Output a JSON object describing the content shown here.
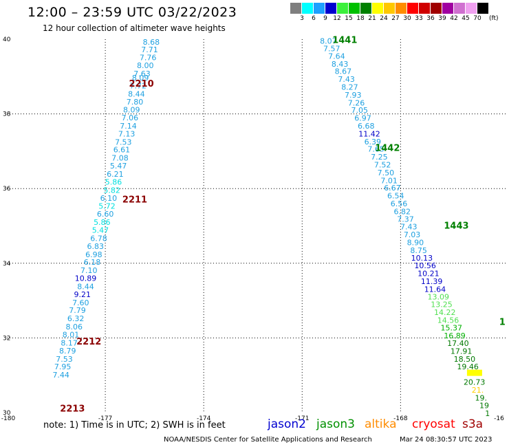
{
  "title": "12:00 – 23:59 UTC 03/22/2023",
  "subtitle": "12 hour collection of altimeter wave heights",
  "legend": {
    "colors": [
      "#7f7f7f",
      "#00ffff",
      "#1ea0ff",
      "#0000d0",
      "#3cf03c",
      "#00c000",
      "#008000",
      "#ffff00",
      "#ffc800",
      "#ff8c00",
      "#ff0000",
      "#d00000",
      "#a00000",
      "#a000a0",
      "#d070d0",
      "#f0a0f0",
      "#000000"
    ],
    "labels": [
      "3",
      "6",
      "9",
      "12",
      "15",
      "18",
      "21",
      "24",
      "27",
      "30",
      "33",
      "36",
      "39",
      "42",
      "45",
      "70"
    ],
    "unit": "(ft)"
  },
  "axes": {
    "x_ticks": [
      "-180",
      "-177",
      "-174",
      "-171",
      "-168",
      "-16"
    ],
    "y_ticks": [
      "40",
      "38",
      "36",
      "34",
      "32",
      "30"
    ],
    "lon_range": [
      -180,
      -164.8
    ],
    "lat_range": [
      30,
      40
    ],
    "grid": true
  },
  "tracks": [
    {
      "time_labels": [
        {
          "text": "2210",
          "lon": -175.9,
          "lat": 38.8,
          "color": "#8b0000"
        },
        {
          "text": "2211",
          "lon": -176.1,
          "lat": 35.7,
          "color": "#8b0000"
        },
        {
          "text": "2212",
          "lon": -177.5,
          "lat": 31.9,
          "color": "#8b0000"
        },
        {
          "text": "2213",
          "lon": -178.0,
          "lat": 30.1,
          "color": "#8b0000"
        }
      ],
      "points": [
        {
          "v": "8.68",
          "lon": -175.6,
          "lat": 39.93,
          "color": "#1ea0e0"
        },
        {
          "v": "7.71",
          "lon": -175.65,
          "lat": 39.72,
          "color": "#1ea0e0"
        },
        {
          "v": "7.76",
          "lon": -175.7,
          "lat": 39.51,
          "color": "#1ea0e0"
        },
        {
          "v": "8.00",
          "lon": -175.78,
          "lat": 39.3,
          "color": "#1ea0e0"
        },
        {
          "v": "7.63",
          "lon": -175.88,
          "lat": 39.08,
          "color": "#1ea0e0"
        },
        {
          "v": "8.09",
          "lon": -175.93,
          "lat": 38.97,
          "color": "#1ea0e0"
        },
        {
          "v": "7.72",
          "lon": -176.0,
          "lat": 38.76,
          "color": "#1ea0e0"
        },
        {
          "v": "8.44",
          "lon": -176.05,
          "lat": 38.54,
          "color": "#1ea0e0"
        },
        {
          "v": "7.80",
          "lon": -176.1,
          "lat": 38.32,
          "color": "#1ea0e0"
        },
        {
          "v": "8.09",
          "lon": -176.2,
          "lat": 38.11,
          "color": "#1ea0e0"
        },
        {
          "v": "7.06",
          "lon": -176.25,
          "lat": 37.9,
          "color": "#1ea0e0"
        },
        {
          "v": "7.14",
          "lon": -176.3,
          "lat": 37.68,
          "color": "#1ea0e0"
        },
        {
          "v": "7.13",
          "lon": -176.35,
          "lat": 37.47,
          "color": "#1ea0e0"
        },
        {
          "v": "7.53",
          "lon": -176.45,
          "lat": 37.25,
          "color": "#1ea0e0"
        },
        {
          "v": "6.61",
          "lon": -176.5,
          "lat": 37.04,
          "color": "#1ea0e0"
        },
        {
          "v": "7.08",
          "lon": -176.55,
          "lat": 36.82,
          "color": "#1ea0e0"
        },
        {
          "v": "5.47",
          "lon": -176.6,
          "lat": 36.61,
          "color": "#1ea0e0"
        },
        {
          "v": "6.21",
          "lon": -176.7,
          "lat": 36.39,
          "color": "#1ea0e0"
        },
        {
          "v": "5.86",
          "lon": -176.75,
          "lat": 36.18,
          "color": "#00e0e0"
        },
        {
          "v": "5.82",
          "lon": -176.8,
          "lat": 35.96,
          "color": "#00e0e0"
        },
        {
          "v": "6.10",
          "lon": -176.9,
          "lat": 35.75,
          "color": "#1ea0e0"
        },
        {
          "v": "5.72",
          "lon": -176.95,
          "lat": 35.53,
          "color": "#00e0e0"
        },
        {
          "v": "6.60",
          "lon": -177.0,
          "lat": 35.32,
          "color": "#1ea0e0"
        },
        {
          "v": "5.86",
          "lon": -177.1,
          "lat": 35.1,
          "color": "#00e0e0"
        },
        {
          "v": "5.47",
          "lon": -177.15,
          "lat": 34.89,
          "color": "#00e0e0"
        },
        {
          "v": "6.78",
          "lon": -177.2,
          "lat": 34.67,
          "color": "#1ea0e0"
        },
        {
          "v": "6.83",
          "lon": -177.3,
          "lat": 34.46,
          "color": "#1ea0e0"
        },
        {
          "v": "6.98",
          "lon": -177.35,
          "lat": 34.24,
          "color": "#1ea0e0"
        },
        {
          "v": "6.18",
          "lon": -177.4,
          "lat": 34.03,
          "color": "#1ea0e0"
        },
        {
          "v": "7.10",
          "lon": -177.5,
          "lat": 33.81,
          "color": "#1ea0e0"
        },
        {
          "v": "10.89",
          "lon": -177.6,
          "lat": 33.6,
          "color": "#0000c8"
        },
        {
          "v": "8.44",
          "lon": -177.6,
          "lat": 33.38,
          "color": "#1ea0e0"
        },
        {
          "v": "9.21",
          "lon": -177.7,
          "lat": 33.17,
          "color": "#0000c8"
        },
        {
          "v": "7.60",
          "lon": -177.75,
          "lat": 32.95,
          "color": "#1ea0e0"
        },
        {
          "v": "7.79",
          "lon": -177.85,
          "lat": 32.74,
          "color": "#1ea0e0"
        },
        {
          "v": "6.32",
          "lon": -177.9,
          "lat": 32.52,
          "color": "#1ea0e0"
        },
        {
          "v": "8.06",
          "lon": -177.95,
          "lat": 32.3,
          "color": "#1ea0e0"
        },
        {
          "v": "8.01",
          "lon": -178.05,
          "lat": 32.09,
          "color": "#1ea0e0"
        },
        {
          "v": "8.17",
          "lon": -178.1,
          "lat": 31.87,
          "color": "#1ea0e0"
        },
        {
          "v": "8.79",
          "lon": -178.15,
          "lat": 31.66,
          "color": "#1ea0e0"
        },
        {
          "v": "7.53",
          "lon": -178.25,
          "lat": 31.44,
          "color": "#1ea0e0"
        },
        {
          "v": "7.95",
          "lon": -178.3,
          "lat": 31.23,
          "color": "#1ea0e0"
        },
        {
          "v": "7.44",
          "lon": -178.35,
          "lat": 31.01,
          "color": "#1ea0e0"
        }
      ]
    },
    {
      "time_labels": [
        {
          "text": "1441",
          "lon": -169.7,
          "lat": 39.97,
          "color": "#008000"
        },
        {
          "text": "1442",
          "lon": -168.4,
          "lat": 37.08,
          "color": "#008000"
        },
        {
          "text": "1443",
          "lon": -166.3,
          "lat": 35.0,
          "color": "#008000"
        },
        {
          "text": "1",
          "lon": -164.9,
          "lat": 32.42,
          "color": "#008000"
        }
      ],
      "points": [
        {
          "v": "8.07",
          "lon": -170.2,
          "lat": 39.95,
          "color": "#1ea0e0"
        },
        {
          "v": "7.57",
          "lon": -170.1,
          "lat": 39.75,
          "color": "#1ea0e0"
        },
        {
          "v": "7.64",
          "lon": -169.95,
          "lat": 39.55,
          "color": "#1ea0e0"
        },
        {
          "v": "8.43",
          "lon": -169.85,
          "lat": 39.34,
          "color": "#1ea0e0"
        },
        {
          "v": "8.67",
          "lon": -169.75,
          "lat": 39.14,
          "color": "#1ea0e0"
        },
        {
          "v": "7.43",
          "lon": -169.65,
          "lat": 38.93,
          "color": "#1ea0e0"
        },
        {
          "v": "8.27",
          "lon": -169.55,
          "lat": 38.72,
          "color": "#1ea0e0"
        },
        {
          "v": "7.93",
          "lon": -169.45,
          "lat": 38.51,
          "color": "#1ea0e0"
        },
        {
          "v": "7.26",
          "lon": -169.35,
          "lat": 38.3,
          "color": "#1ea0e0"
        },
        {
          "v": "7.05",
          "lon": -169.25,
          "lat": 38.1,
          "color": "#1ea0e0"
        },
        {
          "v": "6.97",
          "lon": -169.15,
          "lat": 37.89,
          "color": "#1ea0e0"
        },
        {
          "v": "6.68",
          "lon": -169.05,
          "lat": 37.68,
          "color": "#1ea0e0"
        },
        {
          "v": "11.42",
          "lon": -168.95,
          "lat": 37.47,
          "color": "#0000c8"
        },
        {
          "v": "6.39",
          "lon": -168.85,
          "lat": 37.26,
          "color": "#1ea0e0"
        },
        {
          "v": "7.65",
          "lon": -168.75,
          "lat": 37.06,
          "color": "#1ea0e0"
        },
        {
          "v": "7.25",
          "lon": -168.65,
          "lat": 36.85,
          "color": "#1ea0e0"
        },
        {
          "v": "7.52",
          "lon": -168.55,
          "lat": 36.64,
          "color": "#1ea0e0"
        },
        {
          "v": "7.50",
          "lon": -168.45,
          "lat": 36.43,
          "color": "#1ea0e0"
        },
        {
          "v": "7.01",
          "lon": -168.35,
          "lat": 36.22,
          "color": "#1ea0e0"
        },
        {
          "v": "6.67",
          "lon": -168.25,
          "lat": 36.02,
          "color": "#1ea0e0"
        },
        {
          "v": "6.54",
          "lon": -168.15,
          "lat": 35.81,
          "color": "#1ea0e0"
        },
        {
          "v": "6.56",
          "lon": -168.05,
          "lat": 35.6,
          "color": "#1ea0e0"
        },
        {
          "v": "6.82",
          "lon": -167.95,
          "lat": 35.39,
          "color": "#1ea0e0"
        },
        {
          "v": "7.37",
          "lon": -167.85,
          "lat": 35.18,
          "color": "#1ea0e0"
        },
        {
          "v": "7.43",
          "lon": -167.75,
          "lat": 34.98,
          "color": "#1ea0e0"
        },
        {
          "v": "7.03",
          "lon": -167.65,
          "lat": 34.77,
          "color": "#1ea0e0"
        },
        {
          "v": "8.90",
          "lon": -167.55,
          "lat": 34.56,
          "color": "#1ea0e0"
        },
        {
          "v": "8.75",
          "lon": -167.45,
          "lat": 34.35,
          "color": "#1ea0e0"
        },
        {
          "v": "10.13",
          "lon": -167.35,
          "lat": 34.14,
          "color": "#0000c8"
        },
        {
          "v": "10.56",
          "lon": -167.25,
          "lat": 33.94,
          "color": "#0000c8"
        },
        {
          "v": "10.21",
          "lon": -167.15,
          "lat": 33.73,
          "color": "#0000c8"
        },
        {
          "v": "11.39",
          "lon": -167.05,
          "lat": 33.52,
          "color": "#0000c8"
        },
        {
          "v": "11.64",
          "lon": -166.95,
          "lat": 33.31,
          "color": "#0000c8"
        },
        {
          "v": "13.09",
          "lon": -166.85,
          "lat": 33.1,
          "color": "#50e050"
        },
        {
          "v": "13.25",
          "lon": -166.75,
          "lat": 32.9,
          "color": "#50e050"
        },
        {
          "v": "14.22",
          "lon": -166.65,
          "lat": 32.69,
          "color": "#50e050"
        },
        {
          "v": "14.56",
          "lon": -166.55,
          "lat": 32.48,
          "color": "#50e050"
        },
        {
          "v": "15.37",
          "lon": -166.45,
          "lat": 32.27,
          "color": "#00b000"
        },
        {
          "v": "16.89",
          "lon": -166.35,
          "lat": 32.06,
          "color": "#00b000"
        },
        {
          "v": "17.40",
          "lon": -166.25,
          "lat": 31.86,
          "color": "#007800"
        },
        {
          "v": "17.91",
          "lon": -166.15,
          "lat": 31.65,
          "color": "#007800"
        },
        {
          "v": "18.50",
          "lon": -166.05,
          "lat": 31.44,
          "color": "#007800"
        },
        {
          "v": "19.46",
          "lon": -165.95,
          "lat": 31.23,
          "color": "#007800"
        },
        {
          "v": "",
          "lon": -165.85,
          "lat": 31.02,
          "color": "#ffff00"
        },
        {
          "v": "20.73",
          "lon": -165.75,
          "lat": 30.82,
          "color": "#007800"
        },
        {
          "v": "21.",
          "lon": -165.65,
          "lat": 30.61,
          "color": "#ffd000"
        },
        {
          "v": "19.",
          "lon": -165.55,
          "lat": 30.4,
          "color": "#007800"
        },
        {
          "v": "19",
          "lon": -165.45,
          "lat": 30.19,
          "color": "#007800"
        },
        {
          "v": "1",
          "lon": -165.35,
          "lat": 29.98,
          "color": "#007800"
        }
      ]
    }
  ],
  "note": "note: 1) Time is in UTC; 2) SWH is in feet",
  "satellites": [
    {
      "name": "jason2",
      "color": "#0000d0"
    },
    {
      "name": "jason3",
      "color": "#009000"
    },
    {
      "name": "altika",
      "color": "#ff8c00"
    },
    {
      "name": "cryosat",
      "color": "#ff0000"
    },
    {
      "name": "s3a",
      "color": "#a00000"
    }
  ],
  "footer": "NOAA/NESDIS Center for Satellite Applications and Research",
  "footer_date": "Mar 24 08:30:57 UTC 2023"
}
